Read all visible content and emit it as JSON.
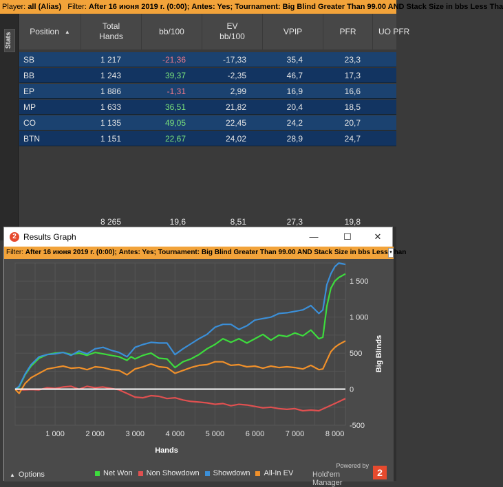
{
  "top_filter": {
    "player_label": "Player:",
    "player_value": "all (Alias)",
    "filter_label": "Filter:",
    "filter_value": "After 16 июня 2019 г. (0:00); Antes: Yes; Tournament: Big Blind Greater Than 99.00 AND Stack Size in bbs Less Tha"
  },
  "stats_tab": "Stats",
  "table": {
    "headers": [
      "Position",
      "Total\nHands",
      "bb/100",
      "EV\nbb/100",
      "VPIP",
      "PFR",
      "UO PFR"
    ],
    "rows": [
      {
        "pos": "SB",
        "hands": "1 217",
        "bb100": "-21,36",
        "ev": "-17,33",
        "vpip": "35,4",
        "pfr": "23,3"
      },
      {
        "pos": "BB",
        "hands": "1 243",
        "bb100": "39,37",
        "ev": "-2,35",
        "vpip": "46,7",
        "pfr": "17,3"
      },
      {
        "pos": "EP",
        "hands": "1 886",
        "bb100": "-1,31",
        "ev": "2,99",
        "vpip": "16,9",
        "pfr": "16,6"
      },
      {
        "pos": "MP",
        "hands": "1 633",
        "bb100": "36,51",
        "ev": "21,82",
        "vpip": "20,4",
        "pfr": "18,5"
      },
      {
        "pos": "CO",
        "hands": "1 135",
        "bb100": "49,05",
        "ev": "22,45",
        "vpip": "24,2",
        "pfr": "20,7"
      },
      {
        "pos": "BTN",
        "hands": "1 151",
        "bb100": "22,67",
        "ev": "24,02",
        "vpip": "28,9",
        "pfr": "24,7"
      }
    ],
    "totals": {
      "hands": "8 265",
      "bb100": "19,6",
      "ev": "8,51",
      "vpip": "27,3",
      "pfr": "19,8"
    }
  },
  "window": {
    "title": "Results Graph",
    "logo": "2",
    "minimize": "—",
    "maximize": "☐",
    "close": "✕",
    "filter_label": "Filter:",
    "filter_value": "After 16 июня 2019 г. (0:00); Antes: Yes; Tournament: Big Blind Greater Than 99.00 AND Stack Size in bbs Less Than",
    "options_label": "Options",
    "powered_by": "Powered by",
    "hm_name": "Hold'em Manager",
    "hm_badge": "2"
  },
  "chart_data": {
    "type": "line",
    "xlabel": "Hands",
    "ylabel": "Big Blinds",
    "x_ticks": [
      1000,
      2000,
      3000,
      4000,
      5000,
      6000,
      7000,
      8000
    ],
    "x_tick_labels": [
      "1 000",
      "2 000",
      "3 000",
      "4 000",
      "5 000",
      "6 000",
      "7 000",
      "8 000"
    ],
    "y_ticks": [
      -500,
      0,
      500,
      1000,
      1500
    ],
    "y_tick_labels": [
      "-500",
      "0",
      "500",
      "1 000",
      "1 500"
    ],
    "xlim": [
      0,
      8265
    ],
    "ylim": [
      -500,
      1750
    ],
    "series": [
      {
        "name": "Net Won",
        "color": "#3ddc3d",
        "x": [
          0,
          100,
          250,
          400,
          600,
          800,
          1000,
          1200,
          1400,
          1600,
          1800,
          2000,
          2200,
          2400,
          2600,
          2800,
          2900,
          3000,
          3200,
          3400,
          3600,
          3800,
          4000,
          4200,
          4400,
          4600,
          4800,
          5000,
          5200,
          5400,
          5600,
          5800,
          6000,
          6200,
          6400,
          6600,
          6800,
          7000,
          7200,
          7400,
          7600,
          7700,
          7800,
          7900,
          8000,
          8100,
          8265
        ],
        "y": [
          0,
          30,
          200,
          320,
          430,
          480,
          500,
          510,
          480,
          500,
          470,
          510,
          490,
          470,
          450,
          400,
          450,
          420,
          470,
          500,
          430,
          420,
          300,
          380,
          420,
          480,
          560,
          620,
          700,
          650,
          700,
          640,
          700,
          760,
          680,
          750,
          730,
          780,
          740,
          820,
          700,
          720,
          1150,
          1400,
          1500,
          1550,
          1600
        ]
      },
      {
        "name": "Non Showdown",
        "color": "#e05050",
        "x": [
          0,
          200,
          400,
          600,
          800,
          1000,
          1200,
          1400,
          1600,
          1800,
          2000,
          2200,
          2400,
          2600,
          2800,
          3000,
          3200,
          3400,
          3600,
          3800,
          4000,
          4200,
          4400,
          4600,
          4800,
          5000,
          5200,
          5400,
          5600,
          5800,
          6000,
          6200,
          6400,
          6600,
          6800,
          7000,
          7200,
          7400,
          7600,
          7800,
          8000,
          8265
        ],
        "y": [
          0,
          -10,
          -5,
          -10,
          20,
          10,
          30,
          40,
          0,
          40,
          20,
          30,
          10,
          -10,
          -60,
          -110,
          -120,
          -90,
          -100,
          -130,
          -120,
          -150,
          -170,
          -180,
          -190,
          -210,
          -200,
          -230,
          -210,
          -220,
          -240,
          -260,
          -250,
          -270,
          -280,
          -270,
          -300,
          -290,
          -300,
          -250,
          -200,
          -130
        ]
      },
      {
        "name": "Showdown",
        "color": "#3b8fd8",
        "x": [
          0,
          100,
          250,
          400,
          600,
          800,
          1000,
          1200,
          1400,
          1600,
          1800,
          2000,
          2200,
          2400,
          2600,
          2800,
          3000,
          3200,
          3400,
          3600,
          3800,
          4000,
          4200,
          4400,
          4600,
          4800,
          5000,
          5200,
          5400,
          5600,
          5800,
          6000,
          6200,
          6400,
          6600,
          6800,
          7000,
          7200,
          7400,
          7600,
          7700,
          7800,
          7900,
          8000,
          8100,
          8265
        ],
        "y": [
          0,
          40,
          210,
          340,
          450,
          480,
          490,
          510,
          470,
          530,
          490,
          560,
          580,
          540,
          510,
          450,
          580,
          620,
          650,
          640,
          640,
          480,
          560,
          630,
          700,
          760,
          860,
          900,
          900,
          830,
          880,
          960,
          980,
          1000,
          1050,
          1060,
          1080,
          1100,
          1160,
          1050,
          1100,
          1450,
          1600,
          1700,
          1750,
          1730
        ]
      },
      {
        "name": "All-In EV",
        "color": "#f0902a",
        "x": [
          0,
          100,
          250,
          400,
          600,
          800,
          1000,
          1200,
          1400,
          1600,
          1800,
          2000,
          2200,
          2400,
          2600,
          2800,
          3000,
          3200,
          3400,
          3600,
          3800,
          4000,
          4200,
          4400,
          4600,
          4800,
          5000,
          5200,
          5400,
          5600,
          5800,
          6000,
          6200,
          6400,
          6600,
          6800,
          7000,
          7200,
          7400,
          7600,
          7700,
          7800,
          7900,
          8000,
          8100,
          8265
        ],
        "y": [
          0,
          -60,
          80,
          160,
          220,
          280,
          300,
          320,
          290,
          300,
          270,
          310,
          300,
          270,
          260,
          200,
          280,
          310,
          350,
          310,
          300,
          220,
          260,
          300,
          330,
          340,
          380,
          380,
          330,
          340,
          310,
          320,
          290,
          320,
          300,
          310,
          300,
          280,
          330,
          270,
          280,
          400,
          520,
          580,
          620,
          670
        ]
      }
    ],
    "legend_position": "bottom-center"
  }
}
